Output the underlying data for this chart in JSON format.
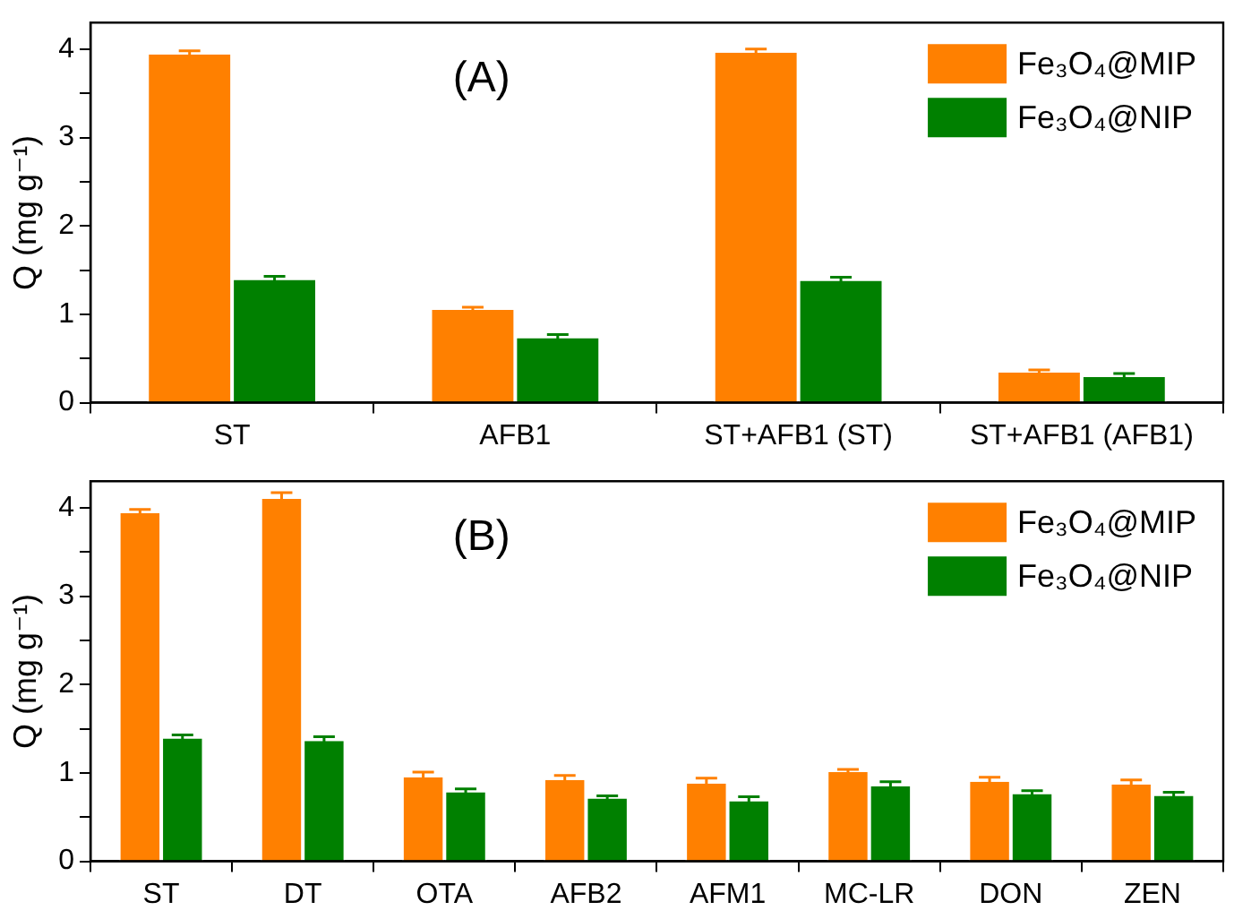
{
  "chart_data": [
    {
      "type": "bar",
      "categories": [
        "ST",
        "AFB1",
        "ST+AFB1 (ST)",
        "ST+AFB1 (AFB1)"
      ],
      "ylabel": "Q (mg g⁻¹)",
      "annotations": [
        "(A)"
      ],
      "ylim": [
        0,
        4.3
      ],
      "yticks": [
        0,
        {
          "value": 0.5,
          "label": null
        },
        1,
        {
          "value": 1.5,
          "label": null
        },
        2,
        {
          "value": 2.5,
          "label": null
        },
        3,
        {
          "value": 3.5,
          "label": null
        },
        4
      ],
      "grid": false,
      "legend": "top right",
      "series": [
        {
          "name": "Fe₃O₄@MIP",
          "color": "#ff8000",
          "values": [
            3.94,
            1.05,
            3.96,
            0.34
          ],
          "errors": [
            0.04,
            0.03,
            0.04,
            0.03
          ]
        },
        {
          "name": "Fe₃O₄@NIP",
          "color": "#008000",
          "values": [
            1.39,
            0.73,
            1.38,
            0.29
          ],
          "errors": [
            0.04,
            0.04,
            0.04,
            0.04
          ]
        }
      ]
    },
    {
      "type": "bar",
      "categories": [
        "ST",
        "DT",
        "OTA",
        "AFB2",
        "AFM1",
        "MC-LR",
        "DON",
        "ZEN"
      ],
      "ylabel": "Q (mg g⁻¹)",
      "annotations": [
        "(B)"
      ],
      "ylim": [
        0,
        4.3
      ],
      "yticks": [
        0,
        {
          "value": 0.5,
          "label": null
        },
        1,
        {
          "value": 1.5,
          "label": null
        },
        2,
        {
          "value": 2.5,
          "label": null
        },
        3,
        {
          "value": 3.5,
          "label": null
        },
        4
      ],
      "grid": false,
      "legend": "top right",
      "series": [
        {
          "name": "Fe₃O₄@MIP",
          "color": "#ff8000",
          "values": [
            3.94,
            4.1,
            0.95,
            0.92,
            0.88,
            1.01,
            0.9,
            0.87
          ],
          "errors": [
            0.04,
            0.07,
            0.06,
            0.05,
            0.06,
            0.03,
            0.05,
            0.05
          ]
        },
        {
          "name": "Fe₃O₄@NIP",
          "color": "#008000",
          "values": [
            1.39,
            1.36,
            0.78,
            0.71,
            0.68,
            0.85,
            0.76,
            0.74
          ],
          "errors": [
            0.04,
            0.05,
            0.04,
            0.03,
            0.05,
            0.05,
            0.04,
            0.04
          ]
        }
      ]
    }
  ]
}
